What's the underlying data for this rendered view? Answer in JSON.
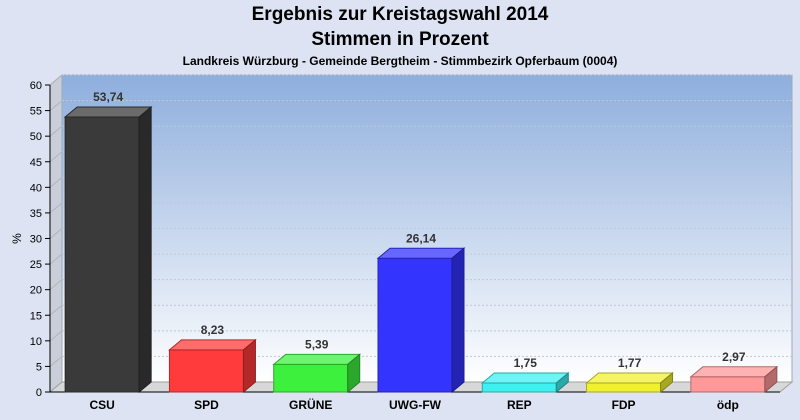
{
  "chart_data": {
    "type": "bar",
    "title": "Ergebnis zur Kreistagswahl 2014",
    "title2": "Stimmen in Prozent",
    "subtitle": "Landkreis Würzburg - Gemeinde Bergtheim - Stimmbezirk Opferbaum (0004)",
    "xlabel": "",
    "ylabel": "%",
    "ylim": [
      0,
      60
    ],
    "yticks": [
      0,
      5,
      10,
      15,
      20,
      25,
      30,
      35,
      40,
      45,
      50,
      55,
      60
    ],
    "categories": [
      "CSU",
      "SPD",
      "GRÜNE",
      "UWG-FW",
      "REP",
      "FDP",
      "ödp"
    ],
    "values": [
      53.74,
      8.23,
      5.39,
      26.14,
      1.75,
      1.77,
      2.97
    ],
    "value_labels": [
      "53,74",
      "8,23",
      "5,39",
      "26,14",
      "1,75",
      "1,77",
      "2,97"
    ],
    "colors": [
      "#3a3a3a",
      "#ff3b3b",
      "#3df03d",
      "#3434ff",
      "#3ef0f0",
      "#f0f030",
      "#ff9898"
    ],
    "grid": true,
    "legend": "none"
  }
}
